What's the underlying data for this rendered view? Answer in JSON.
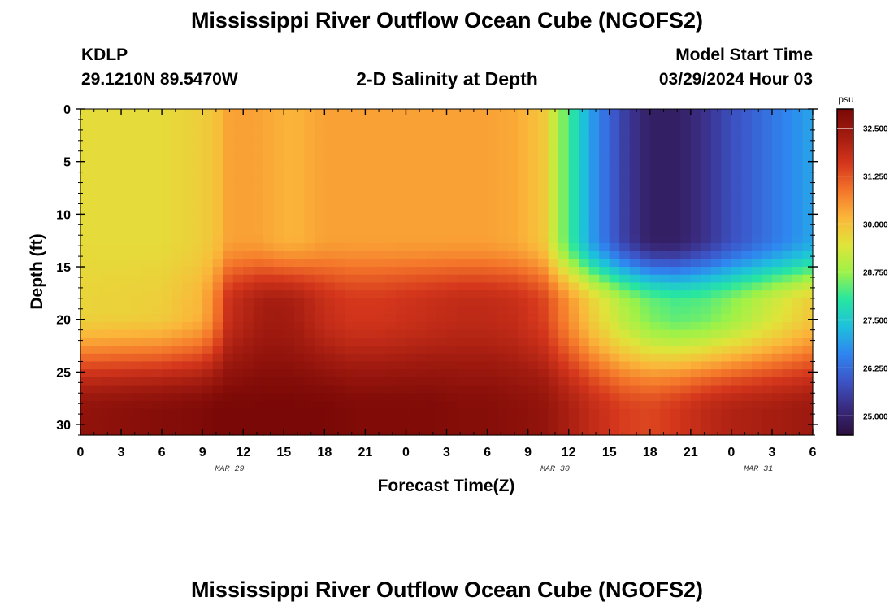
{
  "header": {
    "title": "Mississippi River Outflow Ocean Cube (NGOFS2)",
    "station_id": "KDLP",
    "location": "29.1210N  89.5470W",
    "subtitle": "2-D Salinity at Depth",
    "model_start_label": "Model Start Time",
    "model_start_value": "03/29/2024 Hour 03"
  },
  "footer": {
    "title": "Mississippi River Outflow Ocean Cube (NGOFS2)"
  },
  "chart_data": {
    "type": "heatmap",
    "title": "2-D Salinity at Depth",
    "xlabel": "Forecast Time(Z)",
    "ylabel": "Depth (ft)",
    "x_tick_labels": [
      "0",
      "3",
      "6",
      "9",
      "12",
      "15",
      "18",
      "21",
      "0",
      "3",
      "6",
      "9",
      "12",
      "15",
      "18",
      "21",
      "0",
      "3",
      "6"
    ],
    "x_range_hours": [
      0,
      54
    ],
    "date_labels": [
      {
        "label": "MAR 29",
        "hour": 11
      },
      {
        "label": "MAR 30",
        "hour": 35
      },
      {
        "label": "MAR 31",
        "hour": 50
      }
    ],
    "y_ticks": [
      0,
      5,
      10,
      15,
      20,
      25,
      30
    ],
    "y_range": [
      0,
      31
    ],
    "colorbar": {
      "unit": "psu",
      "min": 24.5,
      "max": 33.0,
      "ticks": [
        "32.500",
        "31.250",
        "30.000",
        "28.750",
        "27.500",
        "26.250",
        "25.000"
      ],
      "colors": [
        "#2b0f3d",
        "#3a2b80",
        "#3c55c8",
        "#2f86f0",
        "#1ec0dc",
        "#28e6a0",
        "#9df248",
        "#e0e43a",
        "#fbb63a",
        "#f4752a",
        "#d4361c",
        "#a31c10",
        "#7a0806"
      ]
    },
    "salinity_grid": {
      "times": [
        0,
        6,
        9,
        10,
        10.5,
        11,
        12,
        13,
        14,
        15,
        16,
        17,
        18,
        20,
        22,
        24,
        26,
        28,
        30,
        32,
        34,
        36,
        38,
        40,
        42,
        44,
        46,
        48,
        50,
        52,
        54
      ],
      "depths": [
        0,
        2,
        5,
        8,
        11,
        14,
        17,
        20,
        22,
        24,
        26,
        28,
        30,
        31
      ],
      "surface_salinity": [
        29.6,
        29.6,
        29.8,
        30.0,
        30.2,
        30.4,
        30.4,
        30.4,
        30.3,
        30.2,
        30.2,
        30.3,
        30.4,
        30.4,
        30.4,
        30.4,
        30.4,
        30.4,
        30.4,
        30.3,
        30.0,
        28.2,
        26.7,
        25.6,
        24.9,
        24.9,
        25.3,
        25.8,
        26.2,
        26.6,
        27.0
      ],
      "mid_salinity": [
        29.7,
        29.8,
        30.2,
        30.8,
        31.4,
        31.8,
        32.0,
        32.2,
        32.3,
        32.3,
        32.2,
        32.0,
        31.8,
        31.6,
        31.6,
        31.7,
        31.8,
        31.9,
        31.9,
        31.8,
        31.5,
        30.6,
        29.7,
        29.0,
        28.5,
        28.3,
        28.4,
        28.7,
        29.1,
        29.5,
        29.9
      ],
      "deep_salinity": [
        32.6,
        32.8,
        32.9,
        33.0,
        33.0,
        33.0,
        33.0,
        33.0,
        33.0,
        33.0,
        33.0,
        33.0,
        33.0,
        32.9,
        32.9,
        32.9,
        32.9,
        32.8,
        32.8,
        32.7,
        32.6,
        32.2,
        31.8,
        31.5,
        31.4,
        31.6,
        31.9,
        32.1,
        32.2,
        32.3,
        32.4
      ],
      "note_fresh_plume": "Fresh river plume reaches minimum about 24.9 psu near surface around 18Z MAR 30"
    }
  }
}
